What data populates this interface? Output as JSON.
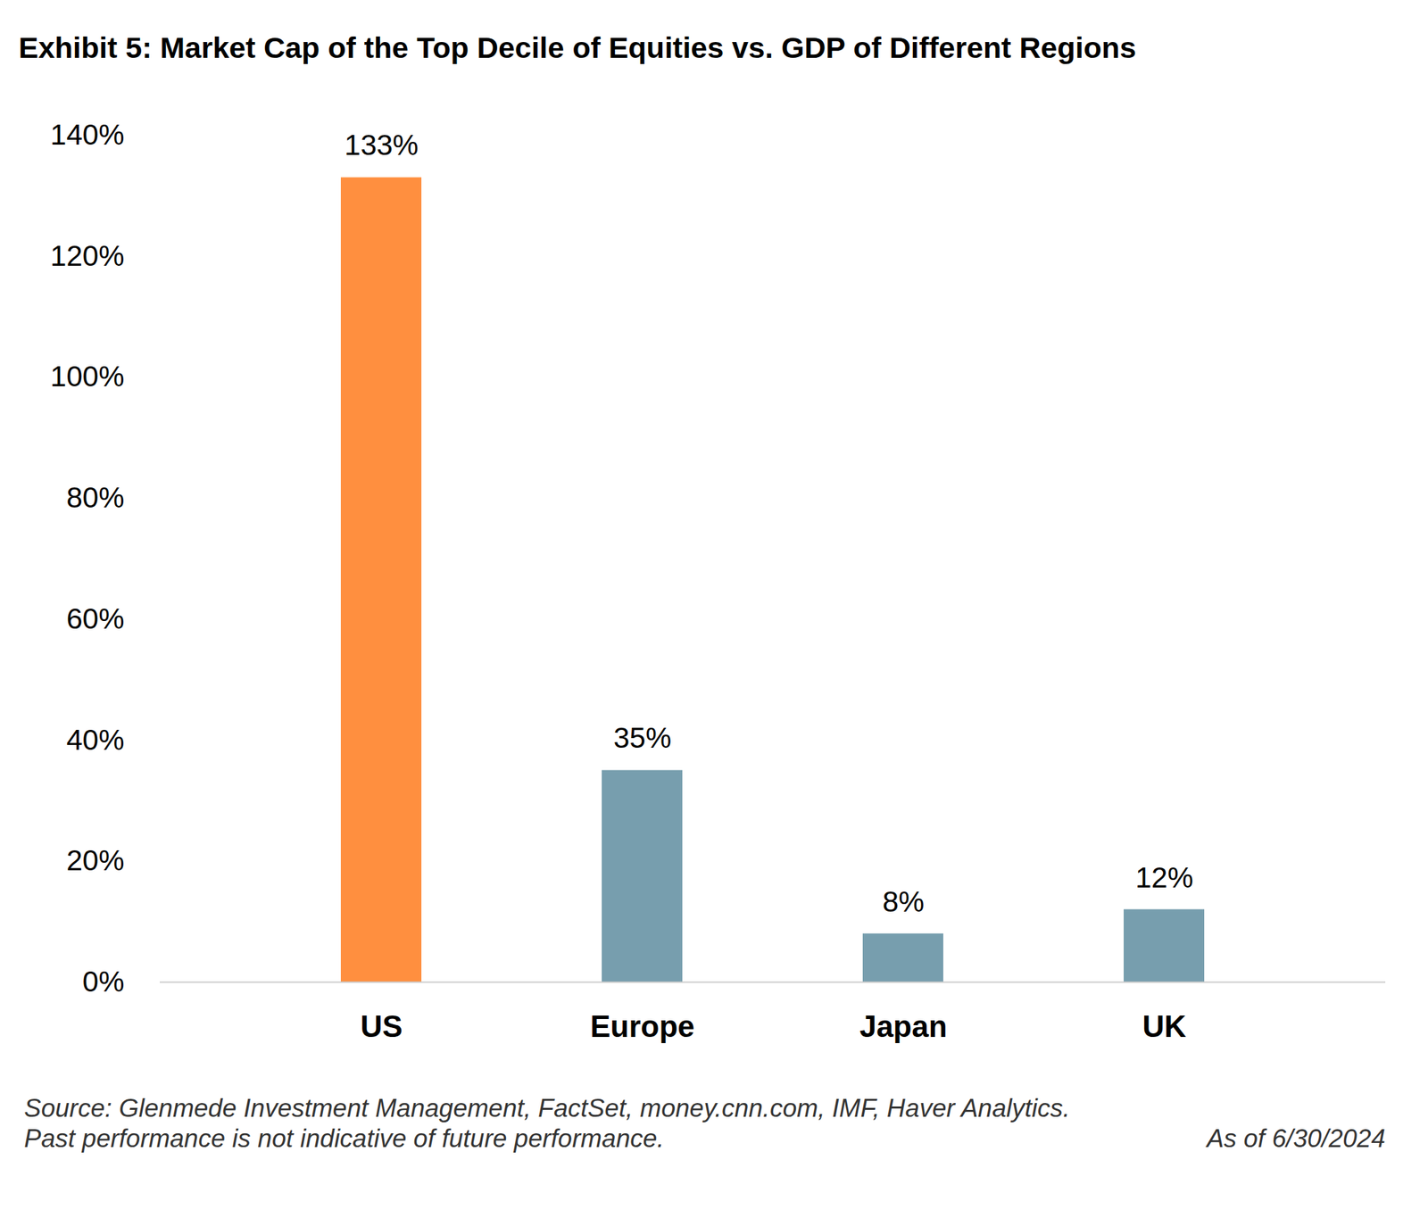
{
  "chart_data": {
    "type": "bar",
    "title": "Exhibit 5: Market Cap of the Top Decile of Equities vs. GDP of Different Regions",
    "categories": [
      "US",
      "Europe",
      "Japan",
      "UK"
    ],
    "values": [
      133,
      35,
      8,
      12
    ],
    "value_labels": [
      "133%",
      "35%",
      "8%",
      "12%"
    ],
    "colors": [
      "#ff8f3f",
      "#779eae",
      "#779eae",
      "#779eae"
    ],
    "data_labels": true,
    "grid": false,
    "ylim": [
      0,
      140
    ],
    "yticks": [
      {
        "value": 0,
        "label": "0%"
      },
      {
        "value": 20,
        "label": "20%"
      },
      {
        "value": 40,
        "label": "40%"
      },
      {
        "value": 60,
        "label": "60%"
      },
      {
        "value": 80,
        "label": "80%"
      },
      {
        "value": 100,
        "label": "100%"
      },
      {
        "value": 120,
        "label": "120%"
      },
      {
        "value": 140,
        "label": "140%"
      }
    ],
    "caption": "Source: Glenmede Investment Management, FactSet, money.cnn.com, IMF, Haver Analytics.",
    "footnote": "Past performance is not indicative of future performance.",
    "as_of": "As of 6/30/2024"
  }
}
